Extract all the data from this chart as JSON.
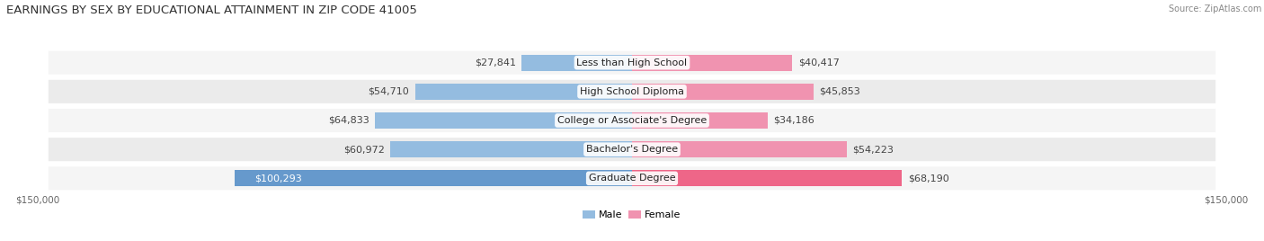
{
  "title": "EARNINGS BY SEX BY EDUCATIONAL ATTAINMENT IN ZIP CODE 41005",
  "source": "Source: ZipAtlas.com",
  "categories": [
    "Less than High School",
    "High School Diploma",
    "College or Associate's Degree",
    "Bachelor's Degree",
    "Graduate Degree"
  ],
  "male_values": [
    27841,
    54710,
    64833,
    60972,
    100293
  ],
  "female_values": [
    40417,
    45853,
    34186,
    54223,
    68190
  ],
  "male_color_normal": "#94bce0",
  "female_color_normal": "#f093b0",
  "male_color_last": "#6699cc",
  "female_color_last": "#ee6688",
  "row_bg_odd": "#f5f5f5",
  "row_bg_even": "#ebebeb",
  "max_value": 150000,
  "background_color": "#ffffff",
  "title_fontsize": 9.5,
  "source_fontsize": 7,
  "label_fontsize": 8,
  "value_fontsize": 8,
  "axis_fontsize": 7.5
}
